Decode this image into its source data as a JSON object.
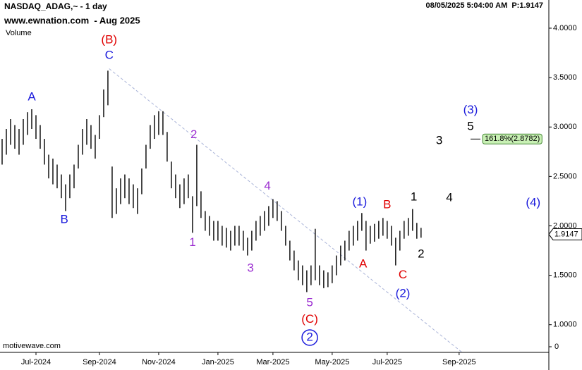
{
  "chart_data": {
    "type": "range_bar",
    "title": "NASDAQ_ADAG,~ - 1 day",
    "subtitle": "www.ewnation.com  - Aug 2025",
    "pane_label": "Volume",
    "timestamp": "08/05/2025 5:04:00 AM  P:1.9147",
    "watermark": "motivewave.com",
    "color": "#000000",
    "x": [
      0,
      1,
      2,
      3,
      4,
      5,
      6,
      7,
      8,
      9,
      10,
      11,
      12,
      13,
      14,
      15,
      16,
      17,
      18,
      19,
      20,
      21,
      22,
      23,
      24,
      25,
      26,
      27,
      28,
      29,
      30,
      31,
      32,
      33,
      34,
      35,
      36,
      37,
      38,
      39,
      40,
      41,
      42,
      43,
      44,
      45,
      46,
      47,
      48,
      49,
      50,
      51,
      52,
      53,
      54,
      55,
      56,
      57,
      58,
      59,
      60,
      61,
      62,
      63,
      64,
      65,
      66,
      67,
      68,
      69,
      70,
      71,
      72,
      73,
      74,
      75,
      76,
      77,
      78,
      79,
      80,
      81,
      82,
      83,
      84,
      85,
      86,
      87,
      88,
      89,
      90,
      91,
      92,
      93,
      94,
      95,
      96,
      97,
      98,
      99
    ],
    "highs": [
      2.88,
      2.98,
      3.08,
      3.02,
      2.98,
      3.08,
      3.15,
      3.18,
      3.12,
      3.02,
      2.88,
      2.72,
      2.68,
      2.62,
      2.52,
      2.42,
      2.52,
      2.62,
      2.82,
      2.98,
      3.08,
      3.02,
      2.92,
      3.12,
      3.38,
      3.57,
      2.6,
      2.38,
      2.48,
      2.52,
      2.48,
      2.42,
      2.38,
      2.58,
      2.82,
      3.02,
      3.12,
      3.16,
      3.16,
      2.95,
      2.65,
      2.52,
      2.42,
      2.48,
      2.52,
      2.3,
      2.82,
      2.35,
      2.15,
      2.1,
      2.05,
      2.05,
      2.0,
      1.98,
      1.95,
      2.0,
      2.0,
      1.95,
      1.88,
      1.95,
      2.05,
      2.1,
      2.15,
      2.2,
      2.27,
      2.25,
      2.15,
      2.0,
      1.85,
      1.75,
      1.65,
      1.6,
      1.55,
      1.6,
      1.97,
      1.6,
      1.55,
      1.53,
      1.6,
      1.7,
      1.8,
      1.85,
      1.95,
      2.0,
      2.05,
      2.13,
      2.05,
      2.0,
      2.02,
      2.05,
      2.08,
      2.05,
      2.0,
      1.88,
      1.95,
      2.05,
      2.08,
      2.17,
      2.03,
      1.98
    ],
    "lows": [
      2.62,
      2.72,
      2.82,
      2.78,
      2.72,
      2.82,
      2.92,
      2.98,
      2.88,
      2.78,
      2.62,
      2.48,
      2.42,
      2.38,
      2.28,
      2.15,
      2.28,
      2.38,
      2.58,
      2.72,
      2.82,
      2.78,
      2.68,
      2.88,
      3.1,
      3.22,
      2.08,
      2.12,
      2.22,
      2.28,
      2.22,
      2.18,
      2.12,
      2.32,
      2.58,
      2.78,
      2.88,
      2.92,
      2.92,
      2.65,
      2.38,
      2.28,
      2.18,
      2.22,
      2.28,
      1.93,
      2.2,
      2.08,
      1.95,
      1.9,
      1.85,
      1.85,
      1.8,
      1.78,
      1.75,
      1.8,
      1.8,
      1.75,
      1.7,
      1.75,
      1.85,
      1.9,
      1.95,
      2.0,
      2.08,
      2.05,
      1.95,
      1.8,
      1.65,
      1.55,
      1.45,
      1.4,
      1.33,
      1.4,
      1.45,
      1.4,
      1.37,
      1.38,
      1.42,
      1.5,
      1.6,
      1.65,
      1.75,
      1.8,
      1.85,
      1.95,
      1.75,
      1.82,
      1.84,
      1.87,
      1.9,
      1.87,
      1.8,
      1.6,
      1.75,
      1.87,
      1.9,
      1.95,
      1.87,
      1.88
    ],
    "xlim": [
      -0.5,
      129.2
    ],
    "xticks": [
      {
        "value": 8,
        "label": "Jul-2024"
      },
      {
        "value": 23,
        "label": "Sep-2024"
      },
      {
        "value": 37,
        "label": "Nov-2024"
      },
      {
        "value": 51,
        "label": "Jan-2025"
      },
      {
        "value": 64,
        "label": "Mar-2025"
      },
      {
        "value": 78,
        "label": "May-2025"
      },
      {
        "value": 91,
        "label": "Jul-2025"
      },
      {
        "value": 108,
        "label": "Sep-2025"
      }
    ],
    "ylim": [
      0.72,
      4.285
    ],
    "yticks": [
      {
        "value": 1,
        "label": "1.0000"
      },
      {
        "value": 1.5,
        "label": "1.5000"
      },
      {
        "value": 2,
        "label": "2.0000"
      },
      {
        "value": 2.5,
        "label": "2.5000"
      },
      {
        "value": 3,
        "label": "3.0000"
      },
      {
        "value": 3.5,
        "label": "3.5000"
      },
      {
        "value": 4,
        "label": "4.0000"
      }
    ],
    "volume_yticks": [
      0
    ],
    "last_price": 1.9147,
    "trendline": {
      "x": [
        25.3,
        108.7
      ],
      "y": [
        3.59,
        0.72
      ],
      "color": "#aab4d8"
    },
    "target": {
      "value": 2.8782,
      "label": "161.8%(2.8782)",
      "x": 110.7
    },
    "annotations": [
      {
        "text": "(B)",
        "x": 25.3,
        "y": 3.88,
        "color": "#e00000"
      },
      {
        "text": "C",
        "x": 25.3,
        "y": 3.72,
        "color": "#1a1adc"
      },
      {
        "text": "A",
        "x": 7,
        "y": 3.3,
        "color": "#1a1adc"
      },
      {
        "text": "B",
        "x": 14.7,
        "y": 2.06,
        "color": "#1a1adc"
      },
      {
        "text": "2",
        "x": 45.3,
        "y": 2.92,
        "color": "#9a2bd0"
      },
      {
        "text": "1",
        "x": 45,
        "y": 1.83,
        "color": "#9a2bd0"
      },
      {
        "text": "3",
        "x": 58.7,
        "y": 1.57,
        "color": "#9a2bd0"
      },
      {
        "text": "4",
        "x": 62.7,
        "y": 2.4,
        "color": "#9a2bd0"
      },
      {
        "text": "5",
        "x": 72.7,
        "y": 1.22,
        "color": "#9a2bd0"
      },
      {
        "text": "(C)",
        "x": 72.7,
        "y": 1.05,
        "color": "#e00000"
      },
      {
        "text": "2",
        "x": 72.7,
        "y": 0.87,
        "color": "#1a1adc",
        "circled": true
      },
      {
        "text": "(1)",
        "x": 84.5,
        "y": 2.24,
        "color": "#1a1adc"
      },
      {
        "text": "A",
        "x": 85.3,
        "y": 1.61,
        "color": "#e00000"
      },
      {
        "text": "B",
        "x": 91,
        "y": 2.21,
        "color": "#e00000"
      },
      {
        "text": "C",
        "x": 94.7,
        "y": 1.5,
        "color": "#e00000"
      },
      {
        "text": "(2)",
        "x": 94.7,
        "y": 1.31,
        "color": "#1a1adc"
      },
      {
        "text": "1",
        "x": 97.3,
        "y": 2.29,
        "color": "#000000"
      },
      {
        "text": "2",
        "x": 99,
        "y": 1.71,
        "color": "#000000"
      },
      {
        "text": "3",
        "x": 103.3,
        "y": 2.86,
        "color": "#000000"
      },
      {
        "text": "4",
        "x": 105.7,
        "y": 2.28,
        "color": "#000000"
      },
      {
        "text": "5",
        "x": 110.7,
        "y": 3.0,
        "color": "#000000"
      },
      {
        "text": "(3)",
        "x": 110.7,
        "y": 3.17,
        "color": "#1a1adc"
      },
      {
        "text": "(4)",
        "x": 125.5,
        "y": 2.23,
        "color": "#1a1adc"
      }
    ]
  }
}
